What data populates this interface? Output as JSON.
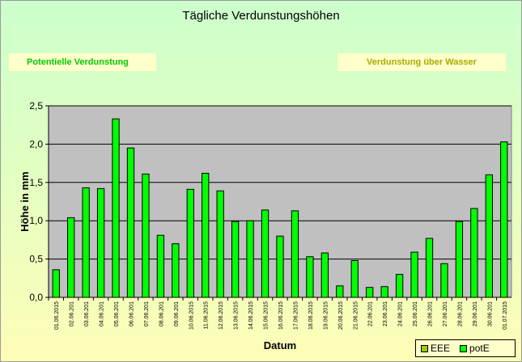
{
  "title": "Tägliche Verdunstungshöhen",
  "buttons": {
    "pot_label": "Potentielle Verdunstung",
    "wasser_label": "Verdunstung über Wasser"
  },
  "colors": {
    "bar": "#00ff00",
    "plot_bg": "#c0c0c0",
    "eee": "#99cc00",
    "pote": "#00ff00"
  },
  "legend": {
    "eee_label": "EEE",
    "pote_label": "potE"
  },
  "chart_data": {
    "type": "bar",
    "title": "Tägliche Verdunstungshöhen",
    "xlabel": "Datum",
    "ylabel": "Höhe in mm",
    "ylim": [
      0,
      2.5
    ],
    "yticks": [
      "0,0",
      "0,5",
      "1,0",
      "1,5",
      "2,0",
      "2,5"
    ],
    "grid": true,
    "legend_position": "bottom-right",
    "categories": [
      "01.06.2015",
      "02.06.201",
      "03.06.201",
      "04.06.201",
      "05.06.201",
      "06.06.201",
      "07.06.201",
      "08.06.201",
      "09.06.201",
      "10.06.2015",
      "11.06.2015",
      "12.06.2015",
      "13.06.2015",
      "14.06.2015",
      "15.06.2015",
      "16.06.2015",
      "17.06.2015",
      "18.06.2015",
      "19.06.2015",
      "20.06.2015",
      "21.06.2015",
      "22.06.201",
      "23.06.201",
      "24.06.201",
      "25.06.201",
      "26.06.201",
      "27.06.201",
      "28.06.201",
      "29.06.201",
      "30.06.201",
      "01.07.2015"
    ],
    "series": [
      {
        "name": "potE",
        "values": [
          0.36,
          1.04,
          1.43,
          1.42,
          2.33,
          1.95,
          1.61,
          0.81,
          0.7,
          1.41,
          1.62,
          1.39,
          0.99,
          1.0,
          1.14,
          0.8,
          1.13,
          0.53,
          0.58,
          0.15,
          0.48,
          0.13,
          0.14,
          0.3,
          0.59,
          0.77,
          0.44,
          0.99,
          1.16,
          1.6,
          2.03
        ]
      }
    ]
  }
}
